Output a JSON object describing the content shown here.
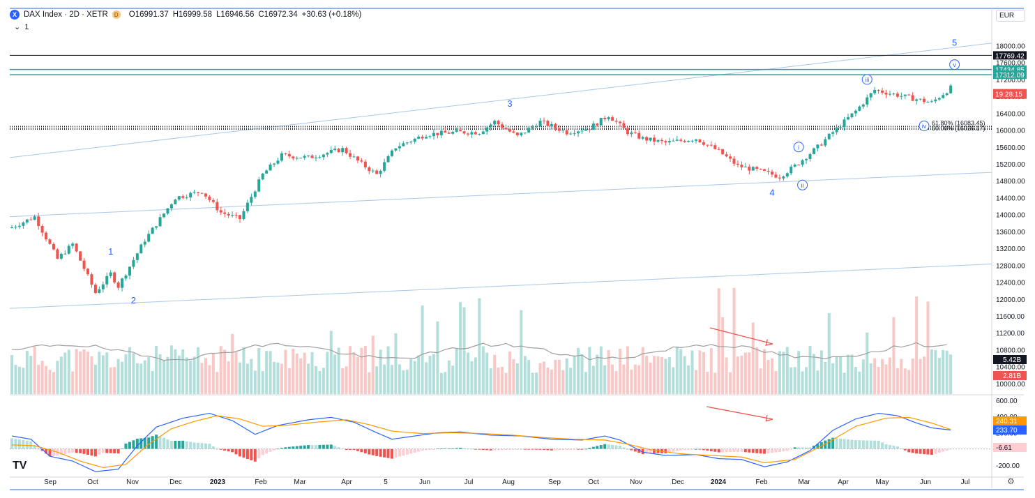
{
  "header": {
    "logo": "X",
    "title": "DAX Index · 2D · XETR",
    "source_badge": "D",
    "open": "O16991.37",
    "high": "H16999.58",
    "low": "L16946.56",
    "close": "C16972.34",
    "change": "+30.63 (+0.18%)",
    "interval_toggle": "1",
    "currency": "EUR"
  },
  "colors": {
    "up": "#26a69a",
    "down": "#ef5350",
    "macd": "#2962ff",
    "signal": "#ff9800",
    "accent": "#2962ff"
  },
  "chart_data": [
    {
      "type": "candlestick",
      "title": "DAX Index · 2D · XETR",
      "ylim": [
        9750,
        18420
      ],
      "y_ticks": [
        "18000.00",
        "17600.00",
        "17200.00",
        "16800.00",
        "16400.00",
        "16000.00",
        "15600.00",
        "15200.00",
        "14800.00",
        "14400.00",
        "14000.00",
        "13600.00",
        "13200.00",
        "12800.00",
        "12400.00",
        "12000.00",
        "11600.00",
        "11200.00",
        "10800.00",
        "10400.00",
        "10000.00"
      ],
      "x_ticks": [
        "Sep",
        "Oct",
        "Nov",
        "Dec",
        "2023",
        "Feb",
        "Mar",
        "Apr",
        "5",
        "Jun",
        "Jul",
        "Aug",
        "Sep",
        "Oct",
        "Nov",
        "Dec",
        "2024",
        "Feb",
        "Mar",
        "Apr",
        "May",
        "Jun",
        "Jul"
      ],
      "close_path": [
        [
          0,
          13700
        ],
        [
          6,
          13950
        ],
        [
          12,
          12950
        ],
        [
          16,
          13300
        ],
        [
          22,
          12150
        ],
        [
          26,
          12600
        ],
        [
          28,
          12300
        ],
        [
          35,
          13400
        ],
        [
          43,
          14400
        ],
        [
          50,
          14550
        ],
        [
          55,
          14050
        ],
        [
          60,
          13900
        ],
        [
          66,
          14950
        ],
        [
          71,
          15400
        ],
        [
          78,
          15350
        ],
        [
          87,
          15550
        ],
        [
          92,
          15200
        ],
        [
          96,
          14950
        ],
        [
          101,
          15600
        ],
        [
          109,
          15900
        ],
        [
          117,
          15950
        ],
        [
          123,
          15950
        ],
        [
          127,
          16200
        ],
        [
          133,
          15850
        ],
        [
          139,
          16200
        ],
        [
          146,
          15950
        ],
        [
          152,
          16050
        ],
        [
          157,
          16350
        ],
        [
          162,
          15950
        ],
        [
          166,
          15800
        ],
        [
          172,
          15700
        ],
        [
          180,
          15800
        ],
        [
          186,
          15500
        ],
        [
          191,
          15150
        ],
        [
          196,
          15050
        ],
        [
          202,
          14900
        ],
        [
          206,
          15150
        ],
        [
          212,
          15600
        ],
        [
          216,
          15950
        ],
        [
          222,
          16450
        ],
        [
          227,
          16950
        ],
        [
          232,
          16850
        ],
        [
          237,
          16750
        ],
        [
          242,
          16650
        ],
        [
          247,
          17000
        ]
      ],
      "price_levels": [
        {
          "label": "17769.42",
          "value": 17769.42
        },
        {
          "label": "17434.85",
          "value": 17434.85
        },
        {
          "label": "17312.09",
          "value": 17312.09
        }
      ],
      "last_price": {
        "label": "19:28:15",
        "value": 16972.34
      },
      "fib_labels": [
        "61.80% (16083.45)",
        "50.00% (16026.17)"
      ],
      "fib_levels": [
        16083.45,
        16026.17
      ],
      "wave_labels": [
        {
          "text": "1",
          "x": 26,
          "y": 13050
        },
        {
          "text": "2",
          "x": 32,
          "y": 11900
        },
        {
          "text": "3",
          "x": 131,
          "y": 16550
        },
        {
          "text": "4",
          "x": 200,
          "y": 14450
        },
        {
          "text": "5",
          "x": 248,
          "y": 18000
        }
      ],
      "circled_labels": [
        {
          "text": "i",
          "x": 207,
          "y": 15600
        },
        {
          "text": "ii",
          "x": 208,
          "y": 14700
        },
        {
          "text": "iii",
          "x": 225,
          "y": 17200
        },
        {
          "text": "iv",
          "x": 240,
          "y": 16100
        },
        {
          "text": "v",
          "x": 248,
          "y": 17550
        }
      ]
    },
    {
      "type": "bar",
      "title": "Volume",
      "values_readout": "5.42B",
      "last_bar_readout": "2.81B"
    },
    {
      "type": "line",
      "title": "MACD",
      "y_ticks": [
        "600.00",
        "400.00",
        "200.00",
        "-200.00"
      ],
      "ylim": [
        -330,
        660
      ],
      "series": [
        {
          "name": "MACD",
          "readout": "233.70",
          "color": "#2962ff"
        },
        {
          "name": "Signal",
          "readout": "240.31",
          "color": "#ff9800"
        },
        {
          "name": "Histogram",
          "readout": "-6.61"
        }
      ],
      "macd_path": [
        [
          0,
          160
        ],
        [
          5,
          120
        ],
        [
          10,
          -90
        ],
        [
          16,
          -150
        ],
        [
          22,
          -280
        ],
        [
          28,
          -250
        ],
        [
          33,
          40
        ],
        [
          38,
          270
        ],
        [
          45,
          380
        ],
        [
          52,
          440
        ],
        [
          58,
          350
        ],
        [
          64,
          180
        ],
        [
          70,
          290
        ],
        [
          78,
          360
        ],
        [
          84,
          390
        ],
        [
          90,
          330
        ],
        [
          96,
          200
        ],
        [
          100,
          120
        ],
        [
          106,
          160
        ],
        [
          112,
          200
        ],
        [
          118,
          210
        ],
        [
          126,
          170
        ],
        [
          134,
          160
        ],
        [
          142,
          120
        ],
        [
          150,
          110
        ],
        [
          156,
          160
        ],
        [
          160,
          110
        ],
        [
          166,
          -40
        ],
        [
          172,
          -80
        ],
        [
          180,
          -70
        ],
        [
          186,
          -120
        ],
        [
          192,
          -130
        ],
        [
          198,
          -220
        ],
        [
          204,
          -160
        ],
        [
          210,
          -20
        ],
        [
          216,
          230
        ],
        [
          222,
          370
        ],
        [
          228,
          440
        ],
        [
          233,
          410
        ],
        [
          238,
          320
        ],
        [
          242,
          260
        ],
        [
          247,
          234
        ]
      ],
      "signal_path": [
        [
          0,
          50
        ],
        [
          6,
          40
        ],
        [
          12,
          -40
        ],
        [
          18,
          -150
        ],
        [
          24,
          -230
        ],
        [
          30,
          -190
        ],
        [
          36,
          60
        ],
        [
          42,
          250
        ],
        [
          48,
          340
        ],
        [
          54,
          410
        ],
        [
          60,
          370
        ],
        [
          66,
          280
        ],
        [
          72,
          290
        ],
        [
          80,
          330
        ],
        [
          88,
          360
        ],
        [
          94,
          300
        ],
        [
          100,
          220
        ],
        [
          108,
          190
        ],
        [
          116,
          200
        ],
        [
          124,
          190
        ],
        [
          132,
          170
        ],
        [
          140,
          140
        ],
        [
          148,
          120
        ],
        [
          156,
          110
        ],
        [
          162,
          60
        ],
        [
          168,
          -10
        ],
        [
          176,
          -60
        ],
        [
          184,
          -80
        ],
        [
          192,
          -100
        ],
        [
          198,
          -170
        ],
        [
          206,
          -130
        ],
        [
          214,
          60
        ],
        [
          222,
          280
        ],
        [
          230,
          380
        ],
        [
          236,
          390
        ],
        [
          242,
          320
        ],
        [
          247,
          240
        ]
      ]
    }
  ]
}
